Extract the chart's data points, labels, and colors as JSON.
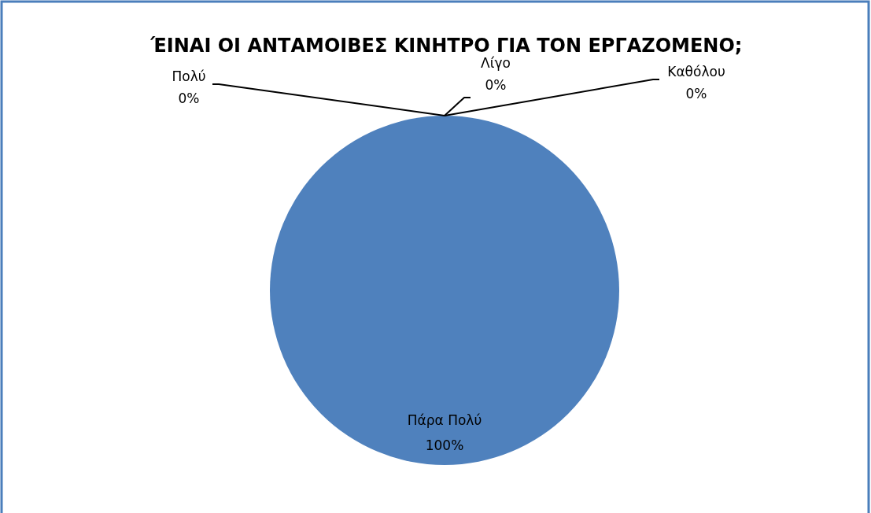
{
  "chart_data": {
    "type": "pie",
    "title": "ΈΙΝΑΙ ΟΙ ΑΝΤΑΜΟΙΒΕΣ ΚΙΝΗΤΡΟ ΓΙΑ ΤΟΝ ΕΡΓΑΖΟΜΕΝΟ;",
    "categories": [
      "Πάρα Πολύ",
      "Πολύ",
      "Λίγο",
      "Καθόλου"
    ],
    "values": [
      100,
      0,
      0,
      0
    ],
    "colors": [
      "#4f81bd",
      "#c0504d",
      "#9bbb59",
      "#8064a2"
    ],
    "value_labels": [
      "100%",
      "0%",
      "0%",
      "0%"
    ]
  }
}
